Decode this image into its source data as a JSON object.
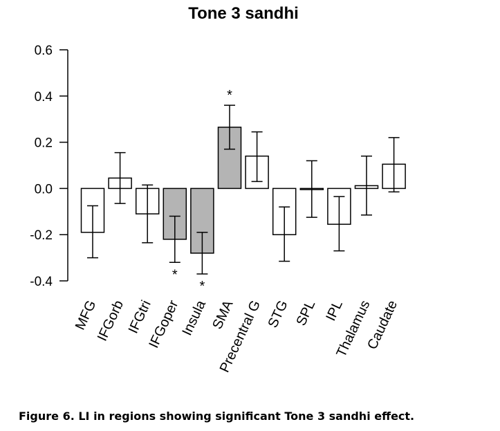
{
  "caption": "Figure 6. LI in regions showing significant Tone 3 sandhi effect.",
  "chart_data": {
    "type": "bar",
    "title": "Tone 3 sandhi",
    "xlabel": "",
    "ylabel": "",
    "ylim": [
      -0.4,
      0.6
    ],
    "yticks": [
      -0.4,
      -0.2,
      0.0,
      0.2,
      0.4,
      0.6
    ],
    "ytick_labels": [
      "-0.4",
      "-0.2",
      "0.0",
      "0.2",
      "0.4",
      "0.6"
    ],
    "grid": false,
    "categories": [
      "MFG",
      "IFGorb",
      "IFGtri",
      "IFGoper",
      "Insula",
      "SMA",
      "Precentral G",
      "STG",
      "SPL",
      "IPL",
      "Thalamus",
      "Caudate"
    ],
    "values": [
      -0.19,
      0.045,
      -0.11,
      -0.22,
      -0.28,
      0.265,
      0.14,
      -0.2,
      -0.005,
      -0.155,
      0.012,
      0.105
    ],
    "error_low": [
      -0.3,
      -0.065,
      -0.235,
      -0.32,
      -0.37,
      0.17,
      0.03,
      -0.315,
      -0.125,
      -0.27,
      -0.115,
      -0.015
    ],
    "error_high": [
      -0.075,
      0.155,
      0.015,
      -0.12,
      -0.19,
      0.36,
      0.245,
      -0.08,
      0.12,
      -0.035,
      0.14,
      0.22
    ],
    "significant": [
      false,
      false,
      false,
      true,
      true,
      true,
      false,
      false,
      false,
      false,
      false,
      false
    ],
    "significance_marker": "*",
    "colors": {
      "significant": "#b4b4b4",
      "nonsignificant": "#ffffff",
      "stroke": "#000000"
    }
  }
}
